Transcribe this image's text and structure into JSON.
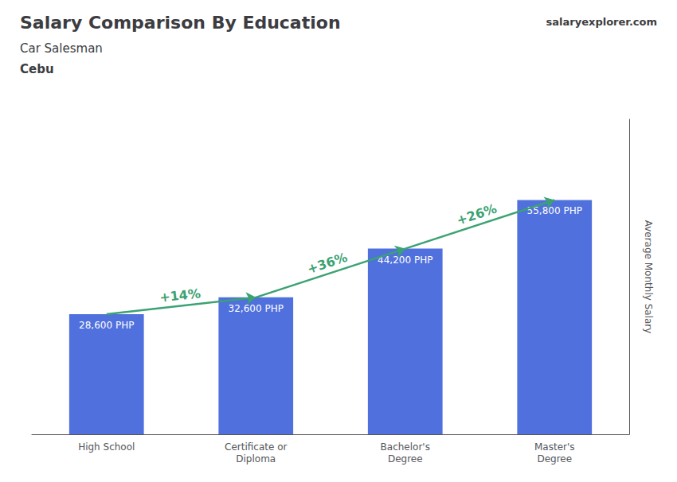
{
  "chart_data": {
    "type": "bar",
    "title": "Salary Comparison By Education",
    "subtitle": "Car Salesman",
    "ylabel": "Average Monthly Salary",
    "categories": [
      "High School",
      "Certificate or\nDiploma",
      "Bachelor's\nDegree",
      "Master's\nDegree"
    ],
    "values": [
      28600,
      32600,
      44200,
      55800
    ],
    "value_labels": [
      "28,600 PHP",
      "32,600 PHP",
      "44,200 PHP",
      "55,800 PHP"
    ],
    "data_labels": true,
    "ylim": [
      0,
      75000
    ],
    "yticks": [],
    "tick_labels": "x",
    "grid": false,
    "annotations": [
      "Cebu",
      "salaryexplorer.com",
      {
        "text": "+14%",
        "from": "High School",
        "to": "Certificate or\nDiploma"
      },
      {
        "text": "+36%",
        "from": "Certificate or\nDiploma",
        "to": "Bachelor's\nDegree"
      },
      {
        "text": "+26%",
        "from": "Bachelor's\nDegree",
        "to": "Master's\nDegree"
      }
    ]
  }
}
